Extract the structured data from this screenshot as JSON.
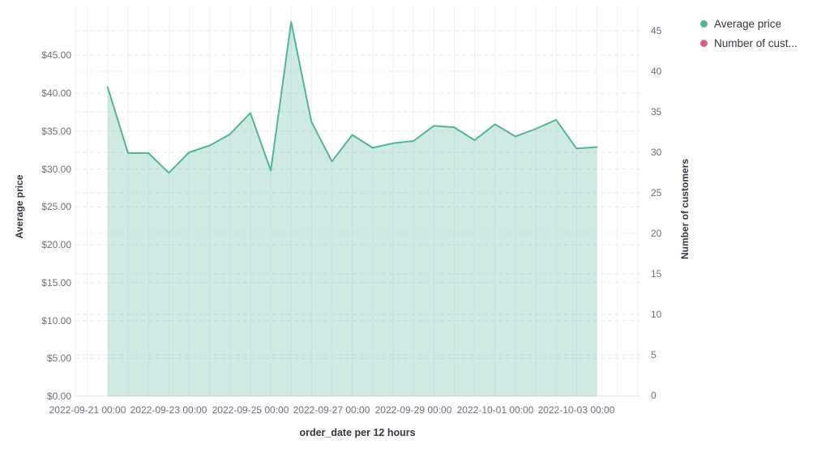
{
  "legend": {
    "items": [
      {
        "label": "Average price",
        "color": "#54b399"
      },
      {
        "label": "Number of cust...",
        "color": "#d36086"
      }
    ]
  },
  "axes": {
    "left": {
      "title": "Average price",
      "ticks": [
        "$0.00",
        "$5.00",
        "$10.00",
        "$15.00",
        "$20.00",
        "$25.00",
        "$30.00",
        "$35.00",
        "$40.00",
        "$45.00"
      ]
    },
    "right": {
      "title": "Number of customers",
      "ticks": [
        "0",
        "5",
        "10",
        "15",
        "20",
        "25",
        "30",
        "35",
        "40",
        "45"
      ]
    },
    "x": {
      "title": "order_date per 12 hours",
      "ticks": [
        "2022-09-21 00:00",
        "2022-09-23 00:00",
        "2022-09-25 00:00",
        "2022-09-27 00:00",
        "2022-09-29 00:00",
        "2022-10-01 00:00",
        "2022-10-03 00:00"
      ]
    }
  },
  "chart_data": {
    "type": "area",
    "title": "",
    "xlabel": "order_date per 12 hours",
    "ylabel_left": "Average price",
    "ylabel_right": "Number of customers",
    "x_interval": "12 hours",
    "x": [
      "2022-09-21 12:00",
      "2022-09-22 00:00",
      "2022-09-22 12:00",
      "2022-09-23 00:00",
      "2022-09-23 12:00",
      "2022-09-24 00:00",
      "2022-09-24 12:00",
      "2022-09-25 00:00",
      "2022-09-25 12:00",
      "2022-09-26 00:00",
      "2022-09-26 12:00",
      "2022-09-27 00:00",
      "2022-09-27 12:00",
      "2022-09-28 00:00",
      "2022-09-28 12:00",
      "2022-09-29 00:00",
      "2022-09-29 12:00",
      "2022-09-30 00:00",
      "2022-09-30 12:00",
      "2022-10-01 00:00",
      "2022-10-01 12:00",
      "2022-10-02 00:00",
      "2022-10-02 12:00",
      "2022-10-03 00:00",
      "2022-10-03 12:00"
    ],
    "series": [
      {
        "name": "Average price",
        "axis": "left",
        "color": "#54b399",
        "fill_opacity": 0.28,
        "values": [
          40.8,
          32.1,
          32.1,
          29.5,
          32.2,
          33.1,
          34.6,
          37.4,
          29.8,
          49.4,
          36.2,
          31.0,
          34.5,
          32.8,
          33.4,
          33.7,
          35.7,
          35.5,
          33.8,
          35.9,
          34.3,
          35.3,
          36.5,
          32.7,
          32.9
        ]
      },
      {
        "name": "Number of customers",
        "axis": "right",
        "color": "#d36086",
        "values": []
      }
    ],
    "y_left_tick_values": [
      0,
      5,
      10,
      15,
      20,
      25,
      30,
      35,
      40,
      45
    ],
    "y_right_tick_values": [
      0,
      5,
      10,
      15,
      20,
      25,
      30,
      35,
      40,
      45
    ],
    "grid": true,
    "legend_position": "top-right",
    "colors": {
      "grid_vertical": "#eef1f5",
      "grid_horizontal": "#e6eaf0",
      "baseline": "#e2e7ee",
      "tick_text": "#69707d",
      "title_text": "#343741"
    }
  }
}
